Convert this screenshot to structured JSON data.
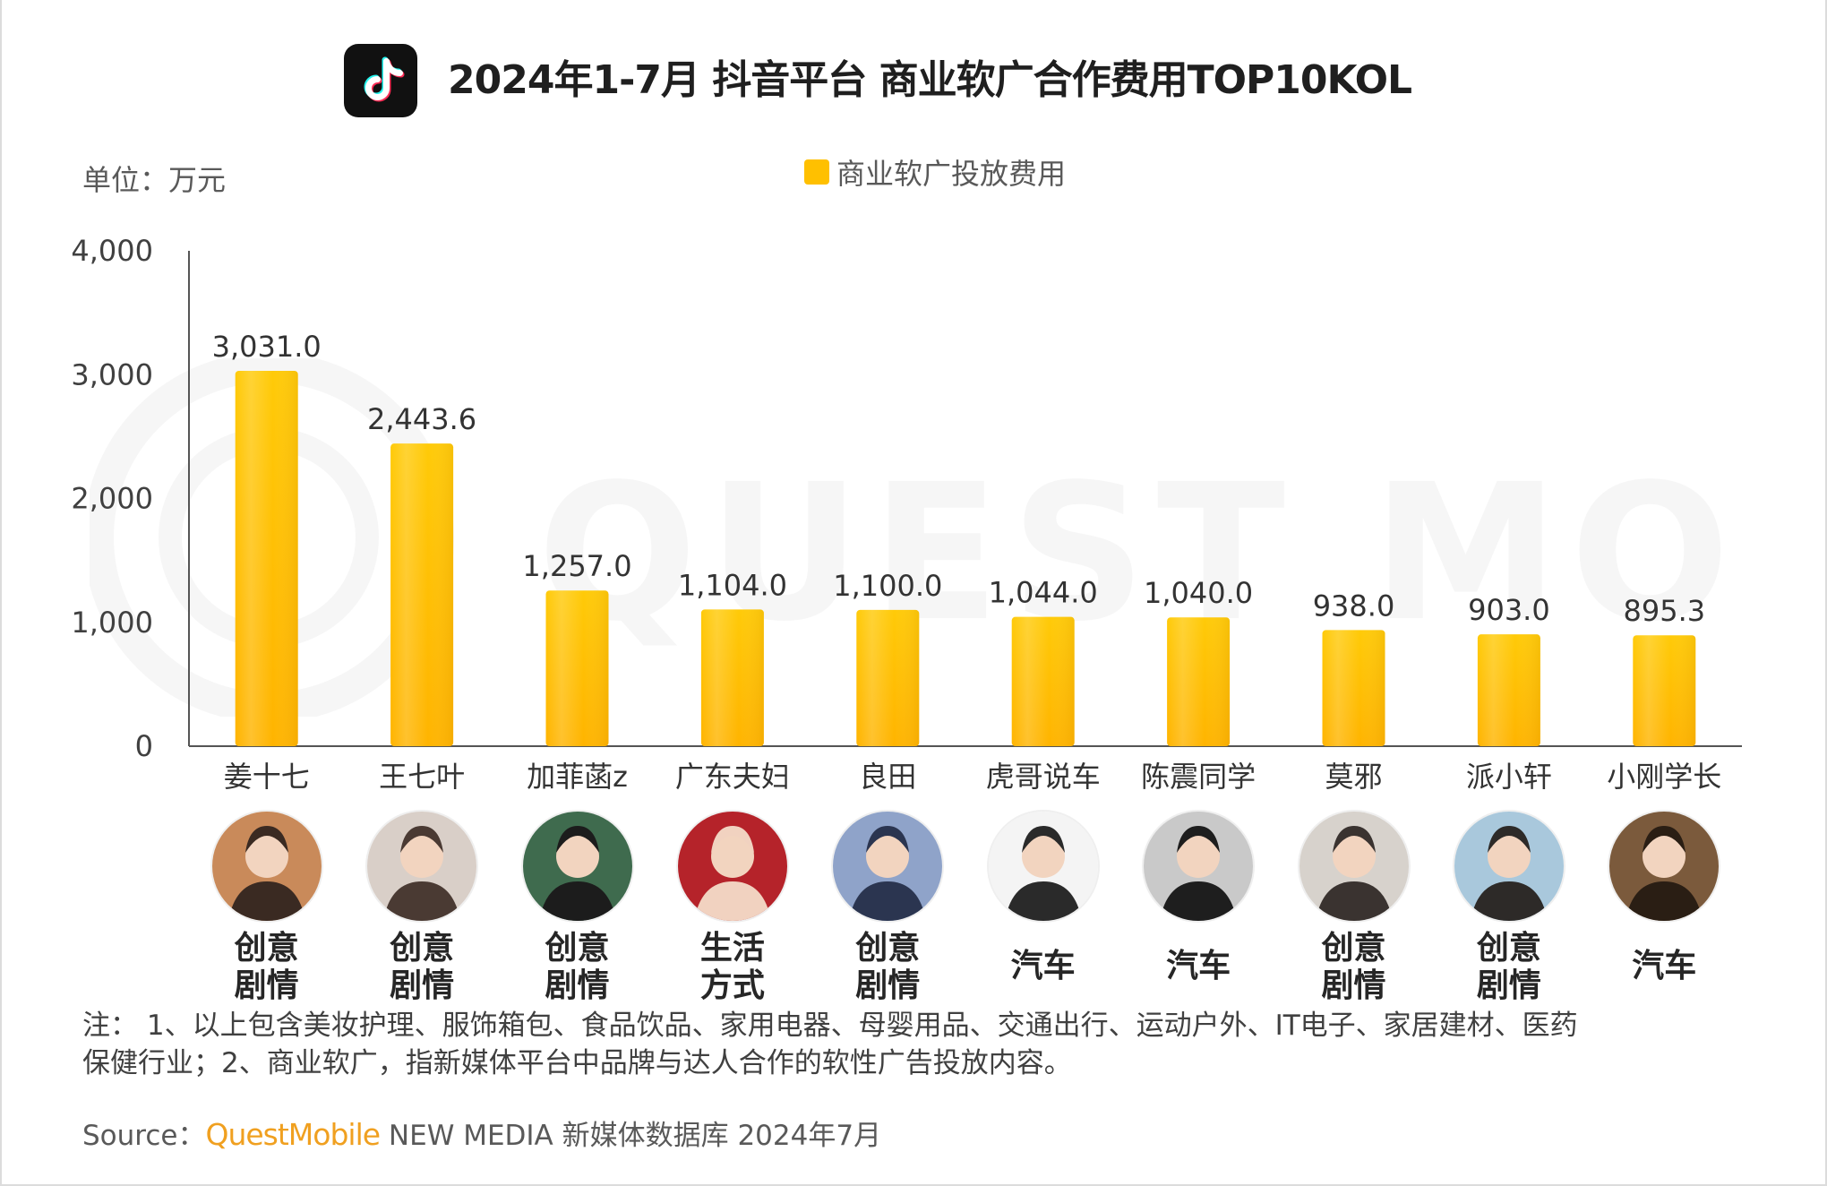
{
  "header": {
    "title": "2024年1-7月 抖音平台 商业软广合作费用TOP10KOL",
    "unit": "单位：万元",
    "logo": "douyin-logo-icon"
  },
  "legend": {
    "label": "商业软广投放费用",
    "color": "#ffc000"
  },
  "watermark": {
    "text": "QUEST MOBILE"
  },
  "chart_data": {
    "type": "bar",
    "categories": [
      "姜十七",
      "王七叶",
      "加菲菡z",
      "广东夫妇",
      "良田",
      "虎哥说车",
      "陈震同学",
      "莫邪",
      "派小轩",
      "小刚学长"
    ],
    "series": [
      {
        "name": "商业软广投放费用",
        "values": [
          3031.0,
          2443.6,
          1257.0,
          1104.0,
          1100.0,
          1044.0,
          1040.0,
          938.0,
          903.0,
          895.3
        ]
      }
    ],
    "data_labels": [
      "3,031.0",
      "2,443.6",
      "1,257.0",
      "1,104.0",
      "1,100.0",
      "1,044.0",
      "1,040.0",
      "938.0",
      "903.0",
      "895.3"
    ],
    "yticks": [
      0,
      1000,
      2000,
      3000,
      4000
    ],
    "ytick_labels": [
      "0",
      "1,000",
      "2,000",
      "3,000",
      "4,000"
    ],
    "ylim": [
      0,
      4000
    ],
    "grid": false,
    "legend_position": "top-center",
    "bar_color": "#ffc000"
  },
  "kol_categories": [
    [
      "创意",
      "剧情"
    ],
    [
      "创意",
      "剧情"
    ],
    [
      "创意",
      "剧情"
    ],
    [
      "生活",
      "方式"
    ],
    [
      "创意",
      "剧情"
    ],
    [
      "汽车"
    ],
    [
      "汽车"
    ],
    [
      "创意",
      "剧情"
    ],
    [
      "创意",
      "剧情"
    ],
    [
      "汽车"
    ]
  ],
  "avatars": [
    {
      "icon": "avatar-icon",
      "bg": "#c98a5a",
      "fg": "#3a2a22"
    },
    {
      "icon": "avatar-icon",
      "bg": "#d9cfc8",
      "fg": "#4a3a33"
    },
    {
      "icon": "avatar-icon",
      "bg": "#3f6b4e",
      "fg": "#1c1c1c"
    },
    {
      "icon": "avatar-icon",
      "bg": "#b5232a",
      "fg": "#f1d2c0"
    },
    {
      "icon": "avatar-icon",
      "bg": "#8fa3c9",
      "fg": "#2b3550"
    },
    {
      "icon": "avatar-icon",
      "bg": "#f4f4f4",
      "fg": "#2a2a2a"
    },
    {
      "icon": "avatar-icon",
      "bg": "#c9c9c9",
      "fg": "#1e1e1e"
    },
    {
      "icon": "avatar-icon",
      "bg": "#d7d2cc",
      "fg": "#3a3330"
    },
    {
      "icon": "avatar-icon",
      "bg": "#a9c8dc",
      "fg": "#2d2a28"
    },
    {
      "icon": "avatar-icon",
      "bg": "#7b5a3c",
      "fg": "#2a1e14"
    }
  ],
  "footer": {
    "note_line1": "注：  1、以上包含美妆护理、服饰箱包、食品饮品、家用电器、母婴用品、交通出行、运动户外、IT电子、家居建材、医药",
    "note_line2": "保健行业；2、商业软广，指新媒体平台中品牌与达人合作的软性广告投放内容。",
    "source_prefix": "Source：",
    "source_brand": "QuestMobile",
    "source_rest": " NEW MEDIA 新媒体数据库 2024年7月"
  }
}
